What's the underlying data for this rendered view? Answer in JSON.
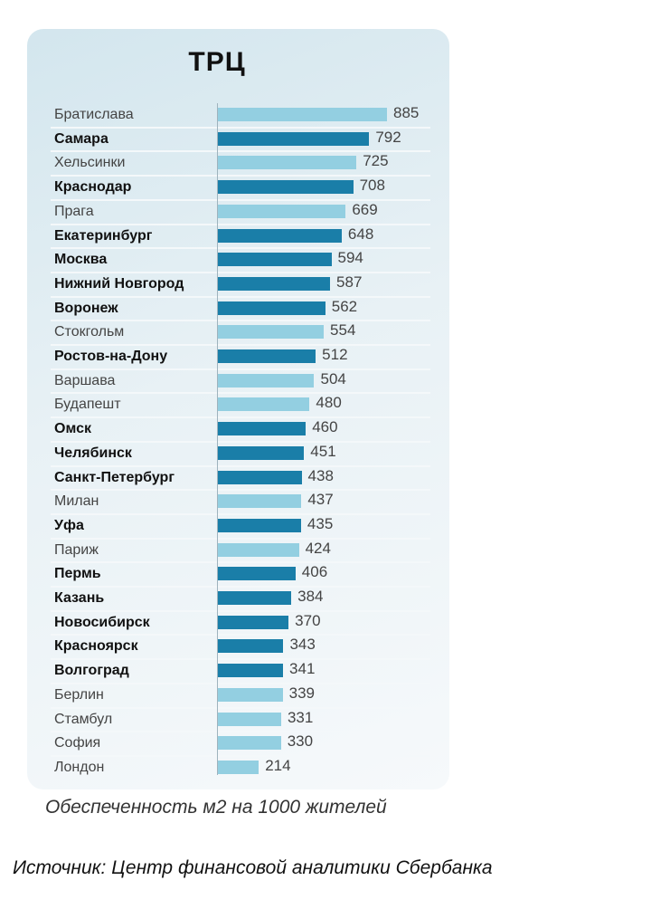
{
  "chart_data": {
    "type": "bar",
    "orientation": "horizontal",
    "title": "ТРЦ",
    "xlabel": "Обеспеченность м2 на 1000 жителей",
    "source": "Источник: Центр финансовой аналитики Сбербанка",
    "colors": {
      "foreign": "#93cfe1",
      "russia": "#1a7ea8"
    },
    "xlim": [
      0,
      885
    ],
    "categories": [
      "Братислава",
      "Самара",
      "Хельсинки",
      "Краснодар",
      "Прага",
      "Екатеринбург",
      "Москва",
      "Нижний Новгород",
      "Воронеж",
      "Стокгольм",
      "Ростов-на-Дону",
      "Варшава",
      "Будапешт",
      "Омск",
      "Челябинск",
      "Санкт-Петербург",
      "Милан",
      "Уфа",
      "Париж",
      "Пермь",
      "Казань",
      "Новосибирск",
      "Красноярск",
      "Волгоград",
      "Берлин",
      "Стамбул",
      "София",
      "Лондон"
    ],
    "values": [
      885,
      792,
      725,
      708,
      669,
      648,
      594,
      587,
      562,
      554,
      512,
      504,
      480,
      460,
      451,
      438,
      437,
      435,
      424,
      406,
      384,
      370,
      343,
      341,
      339,
      331,
      330,
      214
    ],
    "russian": [
      false,
      true,
      false,
      true,
      false,
      true,
      true,
      true,
      true,
      false,
      true,
      false,
      false,
      true,
      true,
      true,
      false,
      true,
      false,
      true,
      true,
      true,
      true,
      true,
      false,
      false,
      false,
      false
    ]
  }
}
